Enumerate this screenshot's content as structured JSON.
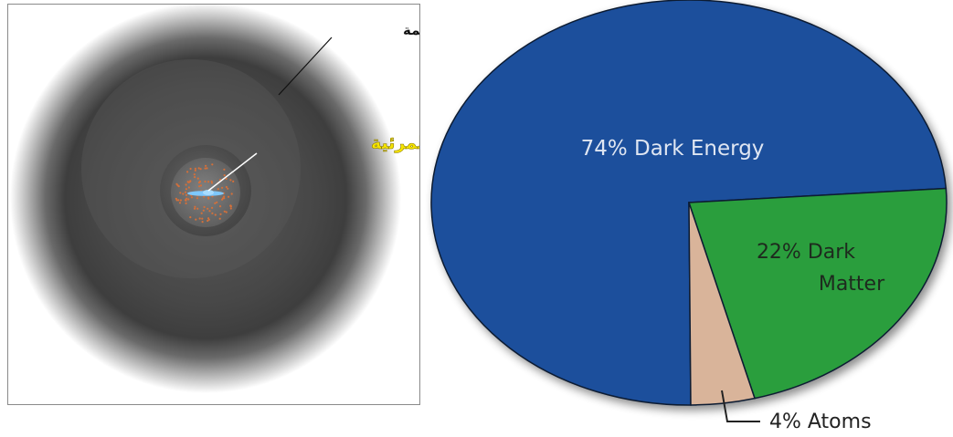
{
  "halo_diagram": {
    "dark_matter_label": "المادة المظلمة",
    "visible_matter_label": "المادة المرئية",
    "colors": {
      "halo_core": "#4a4a4a",
      "halo_edge": "#ffffff",
      "visible_label": "#f5e400",
      "galaxy_dots": "#d4703a",
      "galaxy_disk": "#7ec8ff"
    }
  },
  "chart_data": {
    "type": "pie",
    "slices": [
      {
        "name": "Dark Energy",
        "value": 74,
        "label_lines": [
          "74% Dark Energy"
        ],
        "color": "#1a4f9c"
      },
      {
        "name": "Dark Matter",
        "value": 22,
        "label_lines": [
          "22% Dark",
          "Matter"
        ],
        "color": "#2a9e3c"
      },
      {
        "name": "Atoms",
        "value": 4,
        "label_lines": [
          "4% Atoms"
        ],
        "color": "#d9b49a"
      }
    ],
    "title": "",
    "legend": "none"
  }
}
